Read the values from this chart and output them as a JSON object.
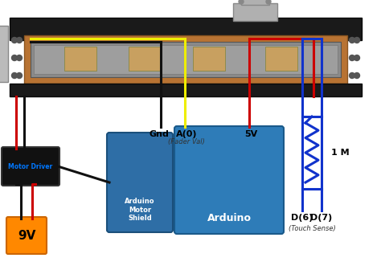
{
  "bg_color": "#ffffff",
  "fader_color": "#1a1a1a",
  "fader_inner_color": "#7a7a7a",
  "fader_track_color": "#a0a0a0",
  "fader_pcb_color": "#b87333",
  "fader_comp_color": "#c8a060",
  "bracket_color": "#aaaaaa",
  "motor_color": "#bbbbbb",
  "motor_box_text": "Motor Driver",
  "motor_box_text_color": "#0077ff",
  "motor_box_color": "#111111",
  "battery_color": "#ff8800",
  "battery_text": "9V",
  "arduino_shield_color": "#2e6ea6",
  "arduino_shield_text": "Arduino\nMotor\nShield",
  "arduino_color": "#2e7cb8",
  "arduino_text": "Arduino",
  "gnd_label": "Gnd",
  "a0_label": "A(0)",
  "fader_val_label": "(Fader Val)",
  "v5_label": "5V",
  "d6_label": "D(6)",
  "d7_label": "D(7)",
  "touch_sense_label": "(Touch Sense)",
  "resistor_label": "1 M",
  "wire_gnd_color": "#111111",
  "wire_a0_color": "#eeee00",
  "wire_5v_color": "#cc0000",
  "wire_motor_red": "#cc0000",
  "wire_motor_black": "#111111",
  "wire_touch_color": "#1133cc"
}
